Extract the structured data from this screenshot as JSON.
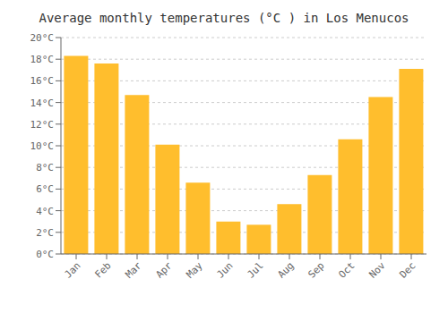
{
  "chart_data": {
    "type": "bar",
    "title": "Average monthly temperatures (°C ) in Los Menucos",
    "categories": [
      "Jan",
      "Feb",
      "Mar",
      "Apr",
      "May",
      "Jun",
      "Jul",
      "Aug",
      "Sep",
      "Oct",
      "Nov",
      "Dec"
    ],
    "values": [
      18.3,
      17.6,
      14.7,
      10.1,
      6.6,
      3.0,
      2.7,
      4.6,
      7.3,
      10.6,
      14.5,
      17.1
    ],
    "color": "#FFBE2D",
    "ylim": [
      0,
      20
    ],
    "yticks": [
      {
        "value": 0,
        "label": "0°C"
      },
      {
        "value": 2,
        "label": "2°C"
      },
      {
        "value": 4,
        "label": "4°C"
      },
      {
        "value": 6,
        "label": "6°C"
      },
      {
        "value": 8,
        "label": "8°C"
      },
      {
        "value": 10,
        "label": "10°C"
      },
      {
        "value": 12,
        "label": "12°C"
      },
      {
        "value": 14,
        "label": "14°C"
      },
      {
        "value": 16,
        "label": "16°C"
      },
      {
        "value": 18,
        "label": "18°C"
      },
      {
        "value": 20,
        "label": "20°C"
      }
    ],
    "grid": true
  }
}
